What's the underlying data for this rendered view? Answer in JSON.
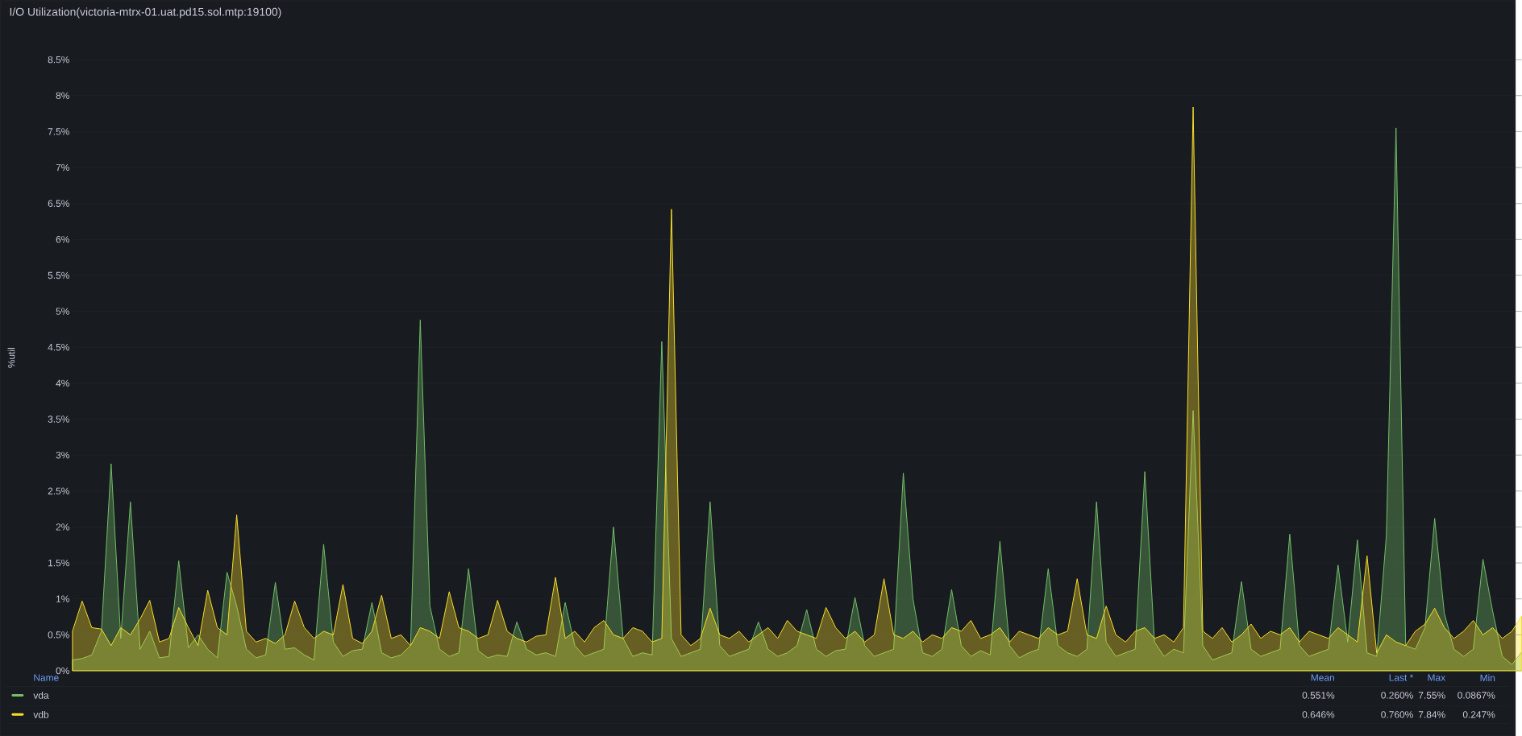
{
  "chart_data": {
    "type": "area",
    "title": "I/O Utilization(victoria-mtrx-01.uat.pd15.sol.mtp:19100)",
    "ylabel": "%util",
    "categories": [
      null,
      null,
      null,
      null,
      null,
      null,
      null,
      null,
      null,
      null,
      null,
      null,
      null,
      null,
      null,
      null,
      null,
      null,
      null,
      null,
      null,
      null,
      null,
      null,
      null,
      null,
      null,
      null,
      null,
      null,
      null,
      null,
      null,
      null,
      null,
      null,
      null,
      null,
      null,
      null,
      null,
      null,
      null,
      null,
      null,
      null,
      null,
      null,
      null,
      null,
      null,
      null,
      null,
      null,
      null,
      null,
      null,
      null,
      null,
      null,
      null,
      null,
      null,
      null,
      null,
      null,
      null,
      null,
      null,
      null,
      null,
      null,
      null,
      null,
      null,
      null,
      null,
      null,
      null,
      null,
      null,
      null,
      null,
      null,
      null,
      null,
      null,
      null,
      null,
      null,
      null,
      null,
      null,
      null,
      null,
      null,
      null,
      null,
      null,
      null,
      null,
      null,
      null,
      null,
      null,
      null,
      null,
      null,
      null,
      null,
      null,
      null,
      null,
      null,
      null,
      null,
      null,
      null,
      null,
      null,
      null,
      null,
      null,
      null,
      null,
      null,
      null,
      null,
      null,
      null,
      null,
      null,
      null,
      null,
      null,
      null,
      null,
      null,
      null,
      null,
      null,
      null,
      null,
      null,
      null,
      null,
      null,
      null,
      null,
      null,
      null
    ],
    "series": [
      {
        "name": "vda",
        "color": "#73bf69",
        "values": [
          0.15,
          0.17,
          0.22,
          0.55,
          2.88,
          0.45,
          2.35,
          0.3,
          0.55,
          0.18,
          0.2,
          1.53,
          0.32,
          0.5,
          0.3,
          0.18,
          1.37,
          0.9,
          0.3,
          0.18,
          0.22,
          1.23,
          0.3,
          0.32,
          0.22,
          0.15,
          1.76,
          0.4,
          0.2,
          0.28,
          0.3,
          0.95,
          0.25,
          0.18,
          0.22,
          0.35,
          4.88,
          0.9,
          0.3,
          0.2,
          0.25,
          1.42,
          0.28,
          0.18,
          0.22,
          0.2,
          0.68,
          0.3,
          0.22,
          0.25,
          0.2,
          0.95,
          0.35,
          0.2,
          0.25,
          0.3,
          2.0,
          0.45,
          0.2,
          0.25,
          0.22,
          4.58,
          0.45,
          0.2,
          0.25,
          0.3,
          2.35,
          0.35,
          0.2,
          0.25,
          0.3,
          0.68,
          0.3,
          0.2,
          0.25,
          0.35,
          0.85,
          0.3,
          0.2,
          0.28,
          0.3,
          1.02,
          0.35,
          0.2,
          0.25,
          0.3,
          2.75,
          1.0,
          0.25,
          0.2,
          0.3,
          1.13,
          0.35,
          0.2,
          0.28,
          0.22,
          1.8,
          0.35,
          0.18,
          0.25,
          0.3,
          1.42,
          0.35,
          0.25,
          0.2,
          0.3,
          2.35,
          0.4,
          0.2,
          0.25,
          0.3,
          2.77,
          0.4,
          0.2,
          0.3,
          0.25,
          3.62,
          0.35,
          0.15,
          0.2,
          0.25,
          1.24,
          0.3,
          0.2,
          0.25,
          0.3,
          1.9,
          0.35,
          0.2,
          0.25,
          0.3,
          1.47,
          0.4,
          1.82,
          0.25,
          0.2,
          1.88,
          7.55,
          0.35,
          0.3,
          0.6,
          2.12,
          0.8,
          0.3,
          0.2,
          0.3,
          1.55,
          0.83,
          0.2,
          0.0867,
          0.26
        ]
      },
      {
        "name": "vdb",
        "color": "#fade2a",
        "values": [
          0.55,
          0.97,
          0.6,
          0.58,
          0.35,
          0.6,
          0.5,
          0.72,
          0.98,
          0.4,
          0.45,
          0.88,
          0.6,
          0.35,
          1.12,
          0.6,
          0.5,
          2.17,
          0.55,
          0.4,
          0.45,
          0.38,
          0.5,
          0.97,
          0.6,
          0.45,
          0.55,
          0.5,
          1.2,
          0.45,
          0.38,
          0.55,
          1.05,
          0.45,
          0.5,
          0.35,
          0.6,
          0.55,
          0.45,
          1.1,
          0.6,
          0.55,
          0.45,
          0.5,
          0.98,
          0.55,
          0.45,
          0.4,
          0.48,
          0.5,
          1.3,
          0.45,
          0.55,
          0.4,
          0.6,
          0.7,
          0.5,
          0.45,
          0.6,
          0.55,
          0.4,
          0.45,
          6.42,
          0.5,
          0.35,
          0.45,
          0.87,
          0.5,
          0.45,
          0.55,
          0.4,
          0.5,
          0.6,
          0.45,
          0.7,
          0.55,
          0.5,
          0.45,
          0.88,
          0.6,
          0.45,
          0.55,
          0.4,
          0.5,
          1.28,
          0.5,
          0.45,
          0.55,
          0.4,
          0.5,
          0.45,
          0.6,
          0.55,
          0.7,
          0.45,
          0.5,
          0.6,
          0.4,
          0.55,
          0.5,
          0.45,
          0.6,
          0.5,
          0.55,
          1.28,
          0.5,
          0.45,
          0.9,
          0.5,
          0.4,
          0.55,
          0.6,
          0.45,
          0.5,
          0.4,
          0.6,
          7.84,
          0.55,
          0.45,
          0.6,
          0.4,
          0.5,
          0.65,
          0.45,
          0.55,
          0.5,
          0.6,
          0.4,
          0.55,
          0.5,
          0.45,
          0.6,
          0.5,
          0.4,
          1.6,
          0.247,
          0.5,
          0.4,
          0.35,
          0.55,
          0.65,
          0.87,
          0.6,
          0.45,
          0.55,
          0.7,
          0.5,
          0.6,
          0.45,
          0.55,
          0.76
        ]
      }
    ],
    "ylim": [
      0,
      8.5
    ],
    "yticks": [
      {
        "value": 0,
        "label": "0%"
      },
      {
        "value": 0.5,
        "label": "0.5%"
      },
      {
        "value": 1,
        "label": "1%"
      },
      {
        "value": 1.5,
        "label": "1.5%"
      },
      {
        "value": 2,
        "label": "2%"
      },
      {
        "value": 2.5,
        "label": "2.5%"
      },
      {
        "value": 3,
        "label": "3%"
      },
      {
        "value": 3.5,
        "label": "3.5%"
      },
      {
        "value": 4,
        "label": "4%"
      },
      {
        "value": 4.5,
        "label": "4.5%"
      },
      {
        "value": 5,
        "label": "5%"
      },
      {
        "value": 5.5,
        "label": "5.5%"
      },
      {
        "value": 6,
        "label": "6%"
      },
      {
        "value": 6.5,
        "label": "6.5%"
      },
      {
        "value": 7,
        "label": "7%"
      },
      {
        "value": 7.5,
        "label": "7.5%"
      },
      {
        "value": 8,
        "label": "8%"
      },
      {
        "value": 8.5,
        "label": "8.5%"
      }
    ],
    "grid": "y",
    "legend": "bottom",
    "annotations": [
      "Name",
      "Mean",
      "Last *",
      "Max",
      "Min",
      "0.551%",
      "0.260%",
      "7.55%",
      "0.0867%",
      "0.646%",
      "0.760%",
      "7.84%",
      "0.247%"
    ]
  }
}
